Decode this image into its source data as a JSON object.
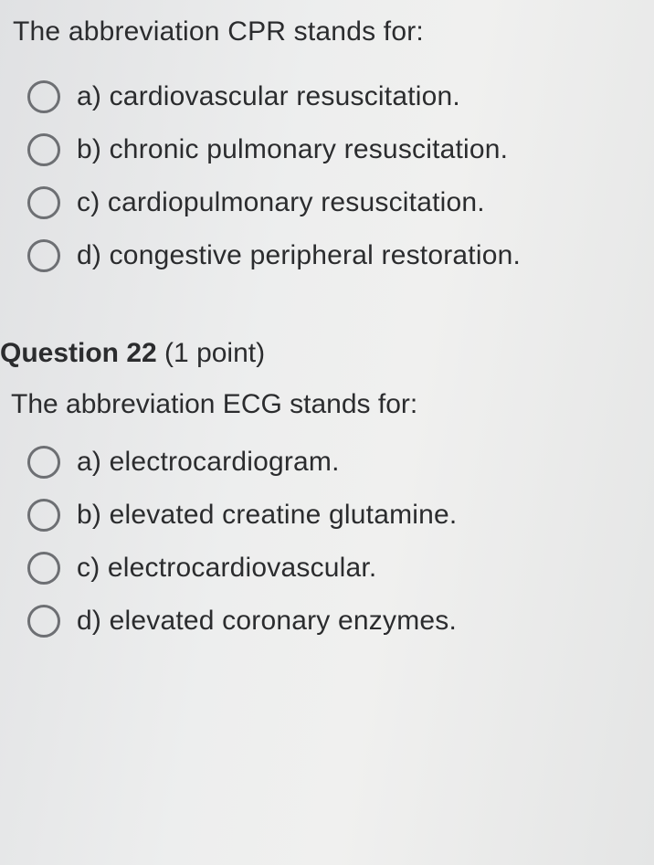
{
  "colors": {
    "text": "#2b2c2e",
    "radio_border": "#6d6f73",
    "bg_gradient_from": "#e0e1e3",
    "bg_gradient_to": "#e4e5e5"
  },
  "typography": {
    "font_family": "Segoe UI, Helvetica Neue, Arial, sans-serif",
    "prompt_fontsize": 30,
    "option_fontsize": 30,
    "heading_fontsize": 30
  },
  "q21": {
    "prompt": "The abbreviation CPR stands for:",
    "options": [
      "a) cardiovascular resuscitation.",
      "b) chronic pulmonary resuscitation.",
      "c) cardiopulmonary resuscitation.",
      "d) congestive peripheral restoration."
    ]
  },
  "q22": {
    "heading_prefix": "Question ",
    "number": "22",
    "points_text": " (1 point)",
    "prompt": "The abbreviation ECG stands for:",
    "options": [
      "a) electrocardiogram.",
      "b) elevated creatine glutamine.",
      "c) electrocardiovascular.",
      "d) elevated coronary enzymes."
    ]
  }
}
